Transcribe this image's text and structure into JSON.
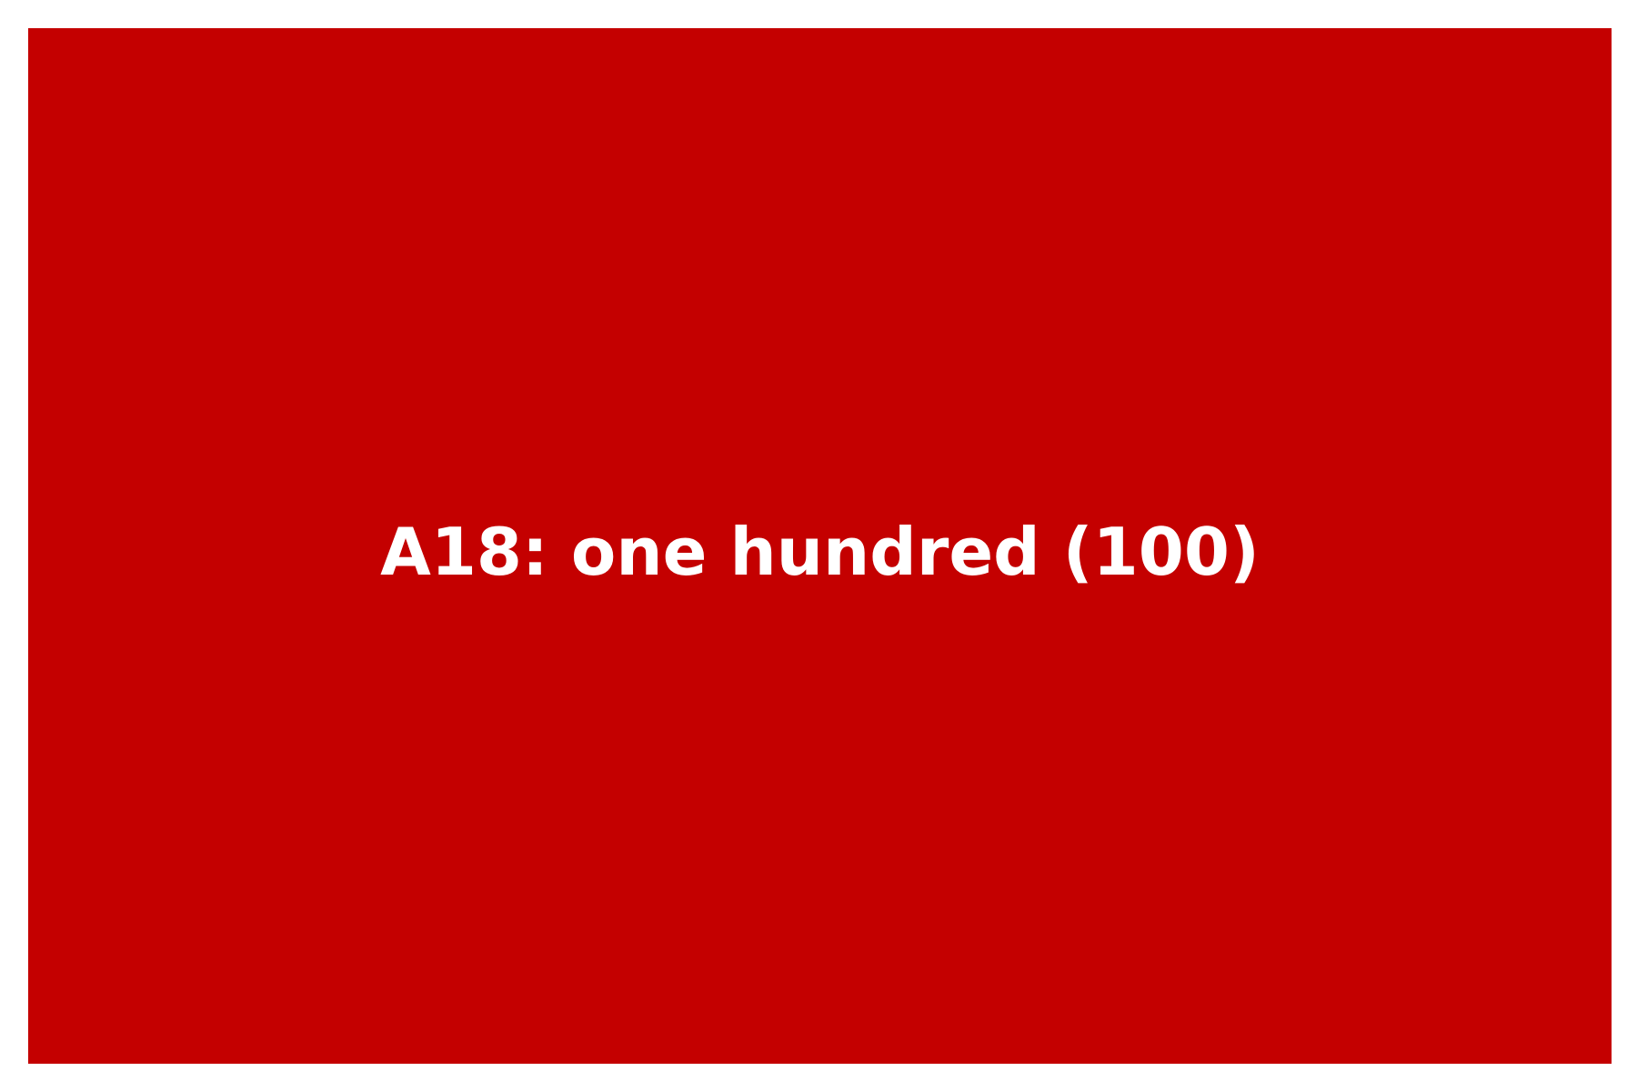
{
  "panel": {
    "label": "A18: one hundred (100)",
    "background_color": "#c40000",
    "text_color": "#ffffff"
  }
}
